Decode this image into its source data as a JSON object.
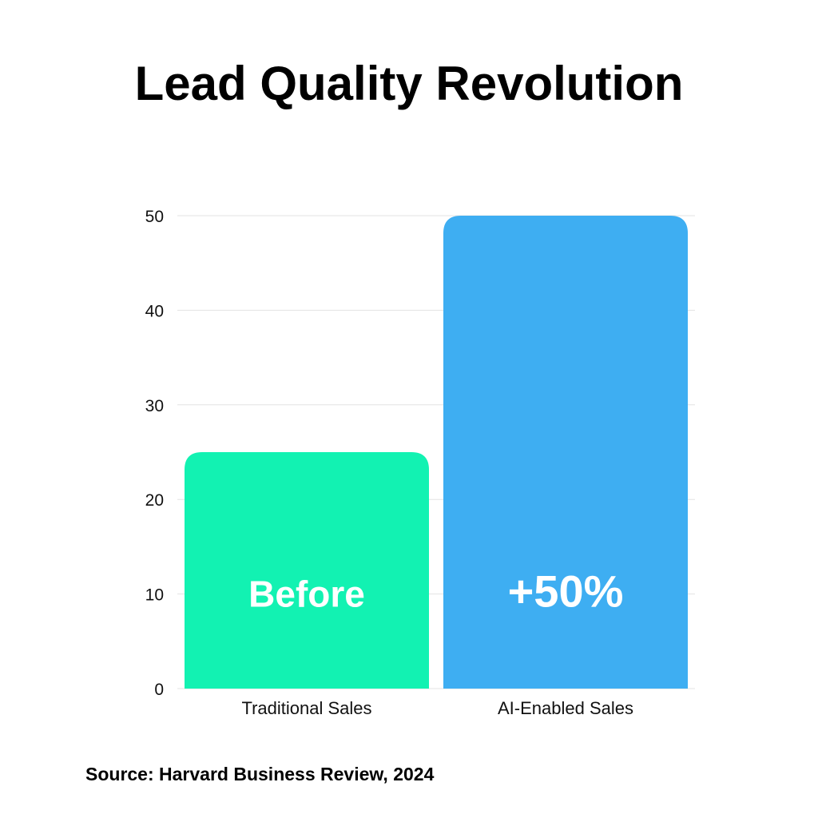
{
  "chart_data": {
    "type": "bar",
    "title": "Lead Quality Revolution",
    "categories": [
      "Traditional Sales",
      "AI-Enabled Sales"
    ],
    "values": [
      25,
      50
    ],
    "bar_labels": [
      "Before",
      "+50%"
    ],
    "colors": [
      "#12F2B2",
      "#3EAEF2"
    ],
    "ylim": [
      0,
      50
    ],
    "yticks": [
      0,
      10,
      20,
      30,
      40,
      50
    ],
    "grid": true,
    "xlabel": "",
    "ylabel": ""
  },
  "source": "Source: Harvard Business Review, 2024"
}
